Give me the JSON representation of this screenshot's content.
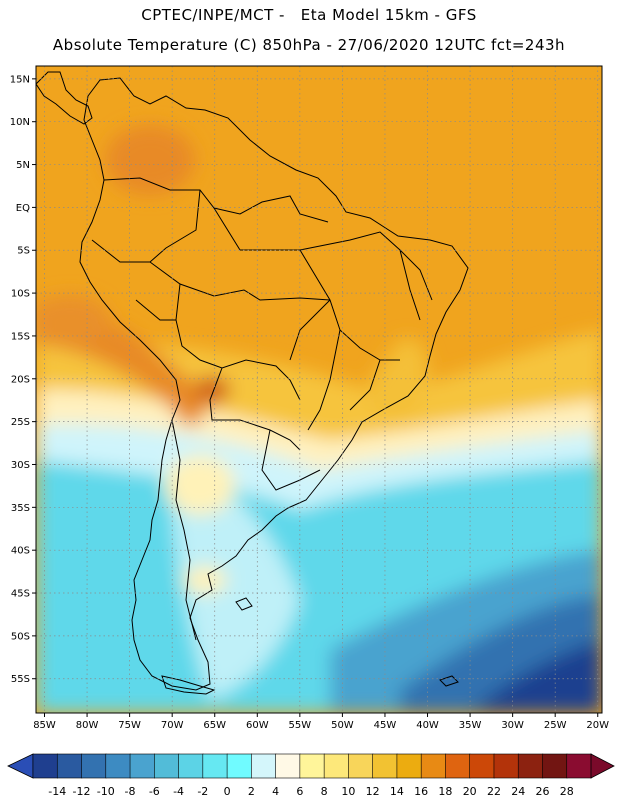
{
  "title_line1": "CPTEC/INPE/MCT -   Eta Model 15km - GFS",
  "title_line2": "Absolute Temperature (C) 850hPa - 27/06/2020 12UTC fct=243h",
  "lat_labels": [
    "15N",
    "10N",
    "5N",
    "EQ",
    "5S",
    "10S",
    "15S",
    "20S",
    "25S",
    "30S",
    "35S",
    "40S",
    "45S",
    "50S",
    "55S"
  ],
  "lon_labels": [
    "85W",
    "80W",
    "75W",
    "70W",
    "65W",
    "60W",
    "55W",
    "50W",
    "45W",
    "40W",
    "35W",
    "30W",
    "25W",
    "20W"
  ],
  "colorbar": {
    "labels": [
      "-14",
      "-12",
      "-10",
      "-8",
      "-6",
      "-4",
      "-2",
      "0",
      "2",
      "4",
      "6",
      "8",
      "10",
      "12",
      "14",
      "16",
      "18",
      "20",
      "22",
      "24",
      "26",
      "28"
    ],
    "colors": [
      "#1f3f8f",
      "#2a5aa0",
      "#3372b0",
      "#3d8bc2",
      "#4aa3cf",
      "#52bcd8",
      "#5cd3e6",
      "#66e8f2",
      "#70fbff",
      "#d4f6fb",
      "#fff9e6",
      "#fff59a",
      "#fde87a",
      "#f8d55a",
      "#f2c232",
      "#ecac10",
      "#e88a14",
      "#df6410",
      "#cc4808",
      "#b3330a",
      "#8c2210",
      "#721512",
      "#8a0c30"
    ],
    "arrow_left": "#2a4eb6",
    "arrow_right": "#7a0a2a"
  },
  "colors": {
    "tropical": "#f0a41e",
    "highland": "#e88a28",
    "subtropical": "#f8d04a",
    "mild": "#fff8d8",
    "cool": "#cff4fb",
    "cold": "#5fd8ea",
    "deep_cold": "#2a5aa0",
    "land_outline": "#000000"
  }
}
